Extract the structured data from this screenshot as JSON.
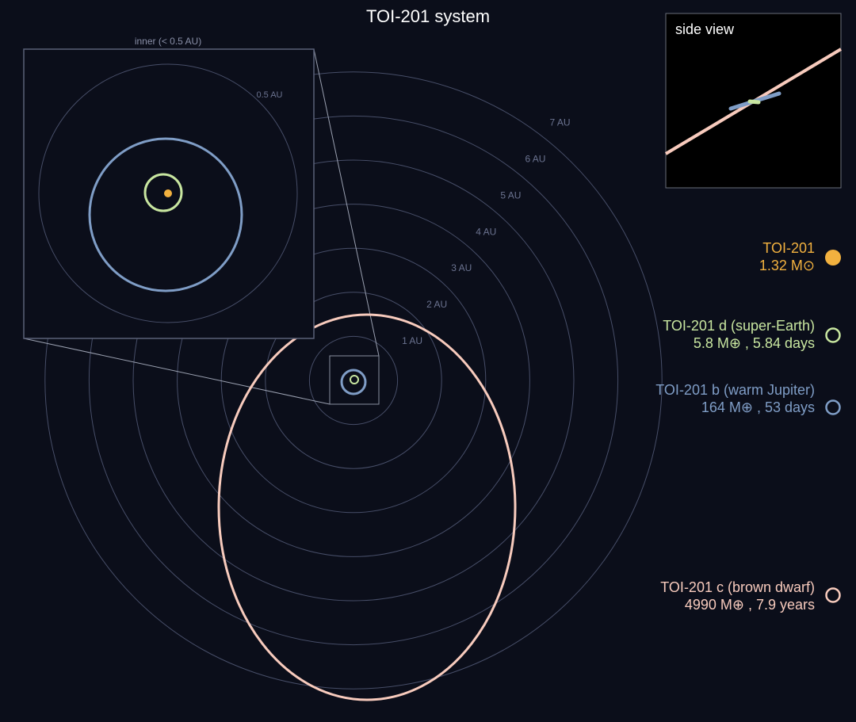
{
  "title": "TOI-201 system",
  "colors": {
    "background": "#0b0e1a",
    "grid": "#474e68",
    "star": "#f2b13f",
    "d": "#c8e6a0",
    "b": "#7f9dc6",
    "c": "#f8cbbd"
  },
  "rings": {
    "unit": "AU",
    "labels": [
      "1 AU",
      "2 AU",
      "3 AU",
      "4 AU",
      "5 AU",
      "6 AU",
      "7 AU"
    ]
  },
  "inset": {
    "title": "inner (< 0.5 AU)",
    "ring_label": "0.5 AU"
  },
  "side_view": {
    "title": "side view"
  },
  "legend": [
    {
      "key": "star",
      "name": "TOI-201",
      "detail": "1.32 M⊙",
      "marker": "filled-circle"
    },
    {
      "key": "d",
      "name": "TOI-201 d (super-Earth)",
      "detail": "5.8 M⊕ , 5.84 days",
      "marker": "ring"
    },
    {
      "key": "b",
      "name": "TOI-201 b (warm Jupiter)",
      "detail": "164 M⊕ , 53 days",
      "marker": "ring"
    },
    {
      "key": "c",
      "name": "TOI-201 c (brown dwarf)",
      "detail": "4990 M⊕ , 7.9 years",
      "marker": "ring"
    }
  ]
}
